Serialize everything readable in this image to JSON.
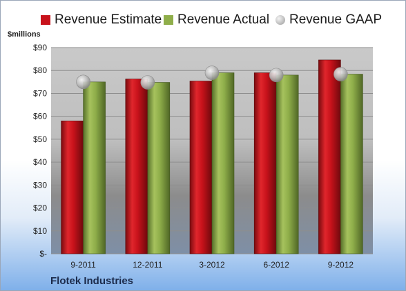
{
  "chart_data": {
    "type": "bar",
    "title": "",
    "xlabel": "",
    "ylabel": "$millions",
    "categories": [
      "9-2011",
      "12-2011",
      "3-2012",
      "6-2012",
      "9-2012"
    ],
    "series": [
      {
        "name": "Revenue Estimate",
        "type": "bar",
        "color": "#c8121b",
        "values": [
          58,
          76.3,
          75.4,
          79,
          84.6
        ]
      },
      {
        "name": "Revenue Actual",
        "type": "bar",
        "color": "#8fae4a",
        "values": [
          75,
          74.8,
          79,
          78,
          78.4
        ]
      },
      {
        "name": "Revenue GAAP",
        "type": "marker",
        "color": "#b9b9b9",
        "values": [
          75,
          74.8,
          79,
          78,
          78.4
        ]
      }
    ],
    "ylim": [
      0,
      90
    ],
    "yticks": [
      0,
      10,
      20,
      30,
      40,
      50,
      60,
      70,
      80,
      90
    ],
    "ytick_labels": [
      "$-",
      "$10",
      "$20",
      "$30",
      "$40",
      "$50",
      "$60",
      "$70",
      "$80",
      "$90"
    ],
    "grid": true,
    "legend_position": "top"
  },
  "footer": {
    "company": "Flotek Industries"
  }
}
